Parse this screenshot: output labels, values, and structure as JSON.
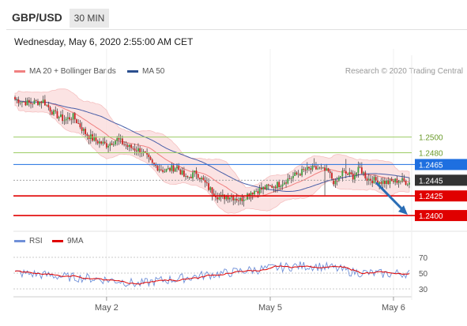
{
  "header": {
    "symbol": "GBP/USD",
    "timeframe": "30 MIN"
  },
  "datetime": "Wednesday, May 6, 2020 2:55:00 AM CET",
  "legend": {
    "ma_bb": "MA 20 + Bollinger Bands",
    "ma50": "MA 50",
    "credit": "Research © 2020 Trading Central"
  },
  "rsi_legend": {
    "rsi": "RSI",
    "ma": "9MA"
  },
  "colors": {
    "bull": "#3e9e3e",
    "bear": "#cc2222",
    "ma20": "#f08080",
    "bands": "#fadada",
    "ma50": "#4a5fa8",
    "support": "#e00000",
    "resistance": "#9ccc65",
    "pivot": "#1e6fe0",
    "current": "#333333",
    "arrow": "#2a6db5"
  },
  "chart_data": {
    "type": "candlestick",
    "symbol": "GBP/USD",
    "timeframe": "30 MIN",
    "ylim": [
      1.2386,
      1.2572
    ],
    "x_ticks": [
      "May 2",
      "May 5",
      "May 6"
    ],
    "price_anchors": [
      [
        0,
        1.2548
      ],
      [
        8,
        1.2543
      ],
      [
        16,
        1.2546
      ],
      [
        22,
        1.253
      ],
      [
        28,
        1.2522
      ],
      [
        33,
        1.2526
      ],
      [
        40,
        1.2505
      ],
      [
        45,
        1.2496
      ],
      [
        52,
        1.249
      ],
      [
        58,
        1.2497
      ],
      [
        64,
        1.2488
      ],
      [
        72,
        1.2482
      ],
      [
        78,
        1.2465
      ],
      [
        85,
        1.2457
      ],
      [
        92,
        1.2462
      ],
      [
        97,
        1.2447
      ],
      [
        103,
        1.2455
      ],
      [
        110,
        1.2435
      ],
      [
        116,
        1.2423
      ],
      [
        122,
        1.2425
      ],
      [
        128,
        1.242
      ],
      [
        134,
        1.243
      ],
      [
        142,
        1.2435
      ],
      [
        150,
        1.244
      ],
      [
        158,
        1.245
      ],
      [
        165,
        1.2458
      ],
      [
        172,
        1.246
      ],
      [
        178,
        1.2455
      ],
      [
        182,
        1.244
      ],
      [
        186,
        1.2455
      ],
      [
        192,
        1.245
      ],
      [
        196,
        1.246
      ],
      [
        200,
        1.2447
      ],
      [
        206,
        1.2444
      ],
      [
        212,
        1.2442
      ],
      [
        218,
        1.2445
      ],
      [
        224,
        1.2442
      ]
    ],
    "levels": [
      {
        "value": 1.25,
        "label": "1.2500",
        "kind": "resistance"
      },
      {
        "value": 1.248,
        "label": "1.2480",
        "kind": "resistance"
      },
      {
        "value": 1.2465,
        "label": "1.2465",
        "kind": "pivot"
      },
      {
        "value": 1.2445,
        "label": "1.2445",
        "kind": "current"
      },
      {
        "value": 1.2425,
        "label": "1.2425",
        "kind": "support"
      },
      {
        "value": 1.24,
        "label": "1.2400",
        "kind": "support"
      }
    ],
    "forecast_arrow": {
      "from": 1.2442,
      "to": 1.2403
    },
    "rsi": {
      "ylim": [
        20,
        80
      ],
      "ticks": [
        70,
        50,
        30
      ],
      "anchors": [
        [
          0,
          50
        ],
        [
          10,
          49
        ],
        [
          20,
          47
        ],
        [
          30,
          45
        ],
        [
          40,
          44
        ],
        [
          50,
          42
        ],
        [
          60,
          40
        ],
        [
          70,
          36
        ],
        [
          80,
          40
        ],
        [
          90,
          42
        ],
        [
          100,
          45
        ],
        [
          110,
          48
        ],
        [
          120,
          50
        ],
        [
          130,
          53
        ],
        [
          140,
          55
        ],
        [
          150,
          57
        ],
        [
          160,
          59
        ],
        [
          170,
          59
        ],
        [
          180,
          57
        ],
        [
          190,
          52
        ],
        [
          200,
          50
        ],
        [
          210,
          49
        ],
        [
          224,
          50
        ]
      ]
    }
  }
}
